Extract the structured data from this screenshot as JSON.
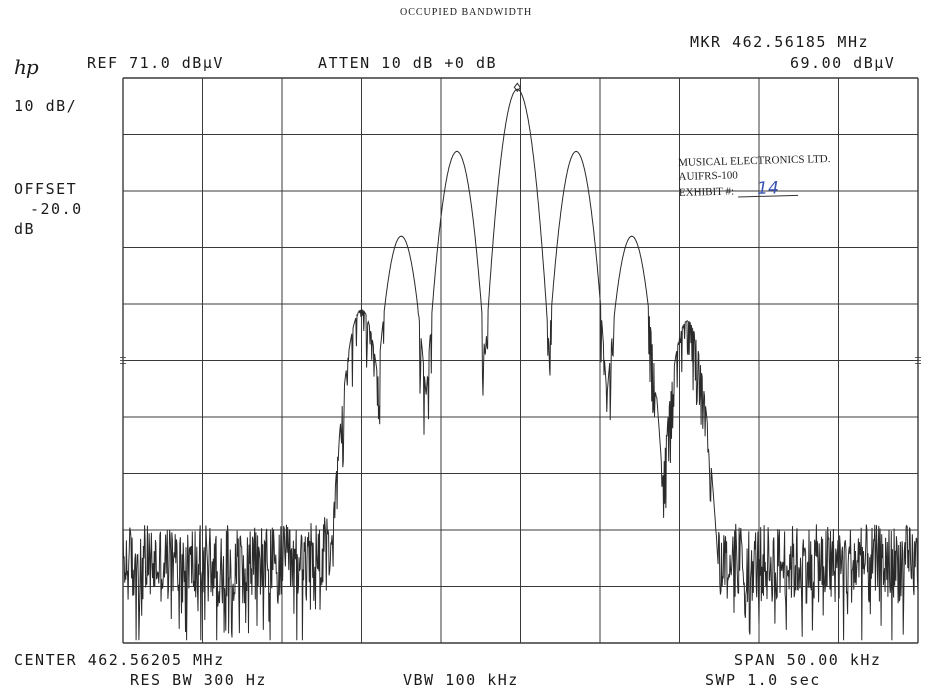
{
  "title": "OCCUPIED BANDWIDTH",
  "header": {
    "logo": "hp",
    "ref": "REF 71.0 dBµV",
    "atten": "ATTEN 10 dB +0 dB",
    "marker_freq": "MKR 462.56185 MHz",
    "marker_level": "69.00 dBµV"
  },
  "left_labels": {
    "scale": "10 dB/",
    "offset_label": "OFFSET",
    "offset_value": "-20.0",
    "offset_unit": "dB"
  },
  "footer": {
    "center": "CENTER 462.56205 MHz",
    "span": "SPAN 50.00 kHz",
    "res_bw": "RES BW 300 Hz",
    "vbw": "VBW 100 kHz",
    "swp": "SWP 1.0 sec"
  },
  "exhibit": {
    "company": "MUSICAL ELECTRONICS LTD.",
    "model": "AUIFRS-100",
    "label": "EXHIBIT #:",
    "number": "14"
  },
  "colors": {
    "trace": "#2a2a2a",
    "grid": "#3a3a3a",
    "exhibit_ink": "#3b55b5"
  },
  "chart_data": {
    "type": "line",
    "title": "OCCUPIED BANDWIDTH",
    "x_unit": "kHz offset from center (462.56205 MHz)",
    "y_unit": "dBµV",
    "xlim": [
      -25,
      25
    ],
    "ylim": [
      -29,
      71
    ],
    "x_divisions": 10,
    "y_divisions": 10,
    "grid": true,
    "noise_floor": [
      -22,
      -8
    ],
    "peaks": [
      {
        "x": -10.0,
        "y": 30
      },
      {
        "x": -7.5,
        "y": 43
      },
      {
        "x": -4.0,
        "y": 58
      },
      {
        "x": -0.2,
        "y": 69
      },
      {
        "x": 3.5,
        "y": 58
      },
      {
        "x": 7.0,
        "y": 43
      },
      {
        "x": 10.5,
        "y": 28
      }
    ],
    "marker": {
      "freq": "462.56185 MHz",
      "level": 69.0
    }
  }
}
